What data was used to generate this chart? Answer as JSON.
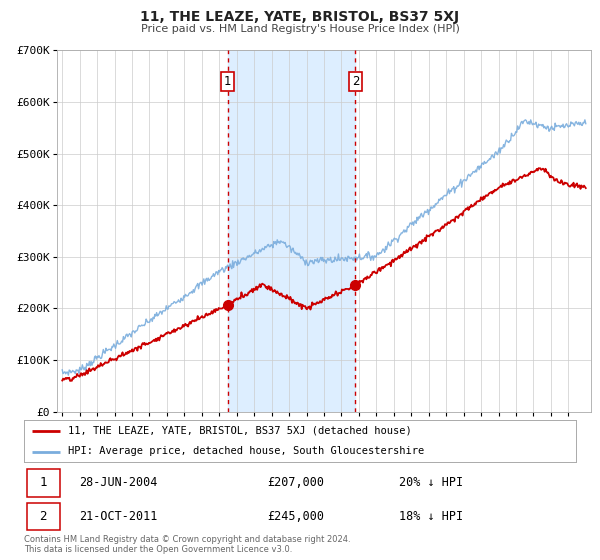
{
  "title": "11, THE LEAZE, YATE, BRISTOL, BS37 5XJ",
  "subtitle": "Price paid vs. HM Land Registry's House Price Index (HPI)",
  "legend_line1": "11, THE LEAZE, YATE, BRISTOL, BS37 5XJ (detached house)",
  "legend_line2": "HPI: Average price, detached house, South Gloucestershire",
  "annotation1": {
    "label": "1",
    "date_str": "28-JUN-2004",
    "price_str": "£207,000",
    "pct_str": "20% ↓ HPI",
    "year": 2004.48
  },
  "annotation2": {
    "label": "2",
    "date_str": "21-OCT-2011",
    "price_str": "£245,000",
    "pct_str": "18% ↓ HPI",
    "year": 2011.8
  },
  "sale1_value": 207000,
  "sale2_value": 245000,
  "footer": "Contains HM Land Registry data © Crown copyright and database right 2024.\nThis data is licensed under the Open Government Licence v3.0.",
  "red_color": "#cc0000",
  "blue_color": "#7aaddd",
  "shade_color": "#ddeeff",
  "ylim": [
    0,
    700000
  ],
  "yticks": [
    0,
    100000,
    200000,
    300000,
    400000,
    500000,
    600000,
    700000
  ],
  "ytick_labels": [
    "£0",
    "£100K",
    "£200K",
    "£300K",
    "£400K",
    "£500K",
    "£600K",
    "£700K"
  ],
  "xlim_start": 1994.7,
  "xlim_end": 2025.3,
  "xticks": [
    1995,
    1996,
    1997,
    1998,
    1999,
    2000,
    2001,
    2002,
    2003,
    2004,
    2005,
    2006,
    2007,
    2008,
    2009,
    2010,
    2011,
    2012,
    2013,
    2014,
    2015,
    2016,
    2017,
    2018,
    2019,
    2020,
    2021,
    2022,
    2023,
    2024
  ]
}
